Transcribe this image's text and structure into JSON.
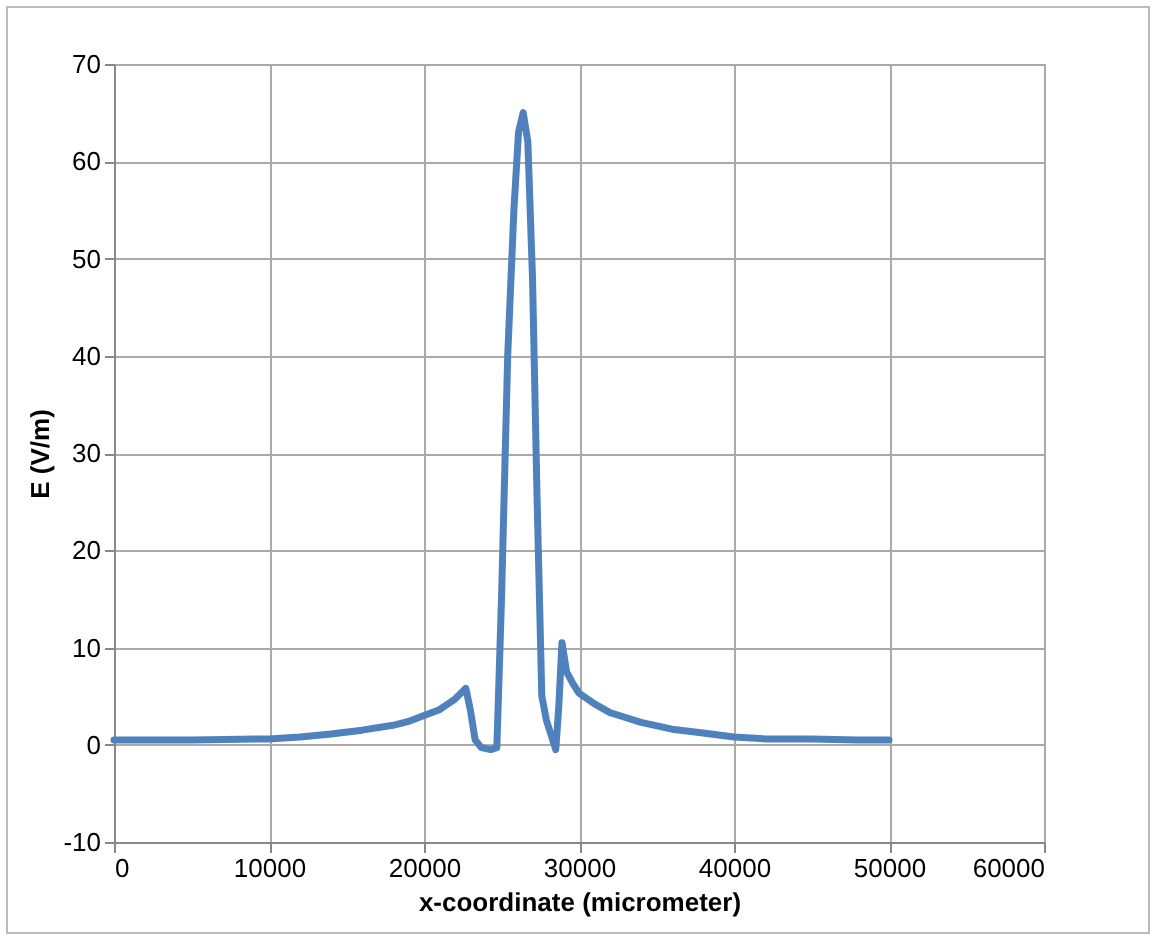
{
  "chart_data": {
    "type": "line",
    "xlabel": "x-coordinate (micrometer)",
    "ylabel": "E (V/m)",
    "xlim": [
      0,
      60000
    ],
    "ylim": [
      -10,
      70
    ],
    "xticks": [
      0,
      10000,
      20000,
      30000,
      40000,
      50000,
      60000
    ],
    "yticks": [
      -10,
      0,
      10,
      20,
      30,
      40,
      50,
      60,
      70
    ],
    "grid": true,
    "series": [
      {
        "color": "#4f81bd",
        "x": [
          0,
          5000,
          10000,
          12000,
          14000,
          16000,
          18000,
          19000,
          20000,
          21000,
          22000,
          22700,
          23000,
          23300,
          23700,
          24300,
          24700,
          25000,
          25400,
          25800,
          26100,
          26400,
          26700,
          27000,
          27300,
          27600,
          27900,
          28200,
          28500,
          28700,
          28900,
          29200,
          29600,
          30000,
          31000,
          32000,
          33000,
          34000,
          36000,
          38000,
          40000,
          42000,
          45000,
          48000,
          50000
        ],
        "values": [
          0.5,
          0.5,
          0.6,
          0.8,
          1.1,
          1.5,
          2,
          2.4,
          3,
          3.6,
          4.7,
          5.8,
          3.5,
          0.5,
          -0.3,
          -0.5,
          -0.3,
          15,
          40,
          55,
          63,
          65,
          62,
          48,
          25,
          5,
          2.5,
          1.0,
          -0.5,
          4,
          10.5,
          7.5,
          6.3,
          5.3,
          4.2,
          3.3,
          2.8,
          2.3,
          1.6,
          1.2,
          0.8,
          0.6,
          0.6,
          0.5,
          0.5
        ]
      }
    ]
  }
}
